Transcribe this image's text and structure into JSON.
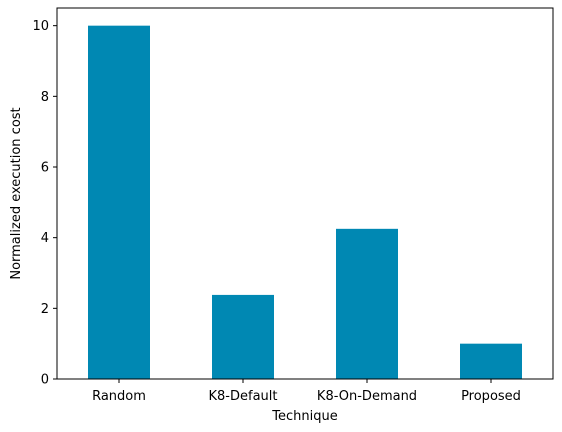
{
  "chart_data": {
    "type": "bar",
    "title": "",
    "xlabel": "Technique",
    "ylabel": "Normalized execution cost",
    "categories": [
      "Random",
      "K8-Default",
      "K8-On-Demand",
      "Proposed"
    ],
    "values": [
      10.0,
      2.38,
      4.25,
      1.0
    ],
    "ylim": [
      0,
      10.5
    ],
    "yticks": [
      "0",
      "2",
      "4",
      "6",
      "8",
      "10"
    ],
    "grid": false,
    "legend": "none",
    "bar_color": "#0088b3"
  }
}
